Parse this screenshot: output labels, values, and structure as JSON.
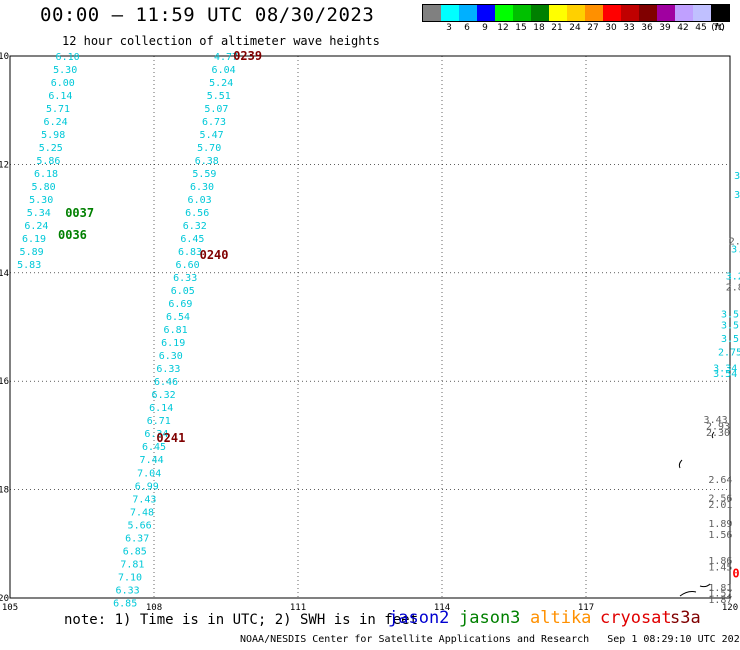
{
  "header": {
    "title": "00:00 — 11:59 UTC 08/30/2023",
    "subtitle": "12 hour collection of altimeter wave heights"
  },
  "legend": {
    "unit": "(ft)",
    "colors": [
      "#808080",
      "#00ffff",
      "#00b0ff",
      "#0000ff",
      "#00ff00",
      "#00c000",
      "#008000",
      "#ffff00",
      "#ffd000",
      "#ff9000",
      "#ff0000",
      "#c00000",
      "#800000",
      "#a000a0",
      "#c0a0ff",
      "#c0c0ff",
      "#000000"
    ],
    "labels": [
      "3",
      "6",
      "9",
      "12",
      "15",
      "18",
      "21",
      "24",
      "27",
      "30",
      "33",
      "36",
      "39",
      "42",
      "45",
      "70"
    ]
  },
  "axes": {
    "x_ticks": [
      "105",
      "108",
      "111",
      "114",
      "117",
      "120"
    ],
    "y_ticks": [
      "10",
      "12",
      "14",
      "16",
      "18",
      "20"
    ]
  },
  "colors": {
    "cyan": "#00c8d8",
    "green": "#008000",
    "darkred": "#800000",
    "gray": "#606060",
    "red": "#ff0000"
  },
  "tracks": {
    "track1": [
      {
        "lon": 106.2,
        "lat": 10.0,
        "v": "6.10"
      },
      {
        "lon": 106.15,
        "lat": 10.24,
        "v": "5.30"
      },
      {
        "lon": 106.1,
        "lat": 10.48,
        "v": "6.00"
      },
      {
        "lon": 106.05,
        "lat": 10.72,
        "v": "6.14"
      },
      {
        "lon": 106.0,
        "lat": 10.96,
        "v": "5.71"
      },
      {
        "lon": 105.95,
        "lat": 11.2,
        "v": "6.24"
      },
      {
        "lon": 105.9,
        "lat": 11.44,
        "v": "5.98"
      },
      {
        "lon": 105.85,
        "lat": 11.68,
        "v": "5.25"
      },
      {
        "lon": 105.8,
        "lat": 11.92,
        "v": "5.86"
      },
      {
        "lon": 105.75,
        "lat": 12.16,
        "v": "6.18"
      },
      {
        "lon": 105.7,
        "lat": 12.4,
        "v": "5.80"
      },
      {
        "lon": 105.65,
        "lat": 12.64,
        "v": "5.30"
      },
      {
        "lon": 105.6,
        "lat": 12.88,
        "v": "5.34"
      },
      {
        "lon": 105.55,
        "lat": 13.12,
        "v": "6.24"
      },
      {
        "lon": 105.5,
        "lat": 13.36,
        "v": "6.19"
      },
      {
        "lon": 105.45,
        "lat": 13.6,
        "v": "5.89"
      },
      {
        "lon": 105.4,
        "lat": 13.84,
        "v": "5.83"
      }
    ],
    "track2": [
      {
        "lon": 109.5,
        "lat": 10.0,
        "v": "4.77"
      },
      {
        "lon": 109.45,
        "lat": 10.24,
        "v": "6.04"
      },
      {
        "lon": 109.4,
        "lat": 10.48,
        "v": "5.24"
      },
      {
        "lon": 109.35,
        "lat": 10.72,
        "v": "5.51"
      },
      {
        "lon": 109.3,
        "lat": 10.96,
        "v": "5.07"
      },
      {
        "lon": 109.25,
        "lat": 11.2,
        "v": "6.73"
      },
      {
        "lon": 109.2,
        "lat": 11.44,
        "v": "5.47"
      },
      {
        "lon": 109.15,
        "lat": 11.68,
        "v": "5.70"
      },
      {
        "lon": 109.1,
        "lat": 11.92,
        "v": "6.38"
      },
      {
        "lon": 109.05,
        "lat": 12.16,
        "v": "5.59"
      },
      {
        "lon": 109.0,
        "lat": 12.4,
        "v": "6.30"
      },
      {
        "lon": 108.95,
        "lat": 12.64,
        "v": "6.03"
      },
      {
        "lon": 108.9,
        "lat": 12.88,
        "v": "6.56"
      },
      {
        "lon": 108.85,
        "lat": 13.12,
        "v": "6.32"
      },
      {
        "lon": 108.8,
        "lat": 13.36,
        "v": "6.45"
      },
      {
        "lon": 108.75,
        "lat": 13.6,
        "v": "6.83"
      },
      {
        "lon": 108.7,
        "lat": 13.84,
        "v": "6.60"
      },
      {
        "lon": 108.65,
        "lat": 14.08,
        "v": "6.33"
      },
      {
        "lon": 108.6,
        "lat": 14.32,
        "v": "6.05"
      },
      {
        "lon": 108.55,
        "lat": 14.56,
        "v": "6.69"
      },
      {
        "lon": 108.5,
        "lat": 14.8,
        "v": "6.54"
      },
      {
        "lon": 108.45,
        "lat": 15.04,
        "v": "6.81"
      },
      {
        "lon": 108.4,
        "lat": 15.28,
        "v": "6.19"
      },
      {
        "lon": 108.35,
        "lat": 15.52,
        "v": "6.30"
      },
      {
        "lon": 108.3,
        "lat": 15.76,
        "v": "6.33"
      },
      {
        "lon": 108.25,
        "lat": 16.0,
        "v": "6.46"
      },
      {
        "lon": 108.2,
        "lat": 16.24,
        "v": "6.32"
      },
      {
        "lon": 108.15,
        "lat": 16.48,
        "v": "6.14"
      },
      {
        "lon": 108.1,
        "lat": 16.72,
        "v": "6.71"
      },
      {
        "lon": 108.05,
        "lat": 16.96,
        "v": "6.34"
      },
      {
        "lon": 108.0,
        "lat": 17.2,
        "v": "6.45"
      },
      {
        "lon": 107.95,
        "lat": 17.44,
        "v": "7.44"
      },
      {
        "lon": 107.9,
        "lat": 17.68,
        "v": "7.04"
      },
      {
        "lon": 107.85,
        "lat": 17.92,
        "v": "6.99"
      },
      {
        "lon": 107.8,
        "lat": 18.16,
        "v": "7.43"
      },
      {
        "lon": 107.75,
        "lat": 18.4,
        "v": "7.48"
      },
      {
        "lon": 107.7,
        "lat": 18.64,
        "v": "5.66"
      },
      {
        "lon": 107.65,
        "lat": 18.88,
        "v": "6.37"
      },
      {
        "lon": 107.6,
        "lat": 19.12,
        "v": "6.85"
      },
      {
        "lon": 107.55,
        "lat": 19.36,
        "v": "7.81"
      },
      {
        "lon": 107.5,
        "lat": 19.6,
        "v": "7.10"
      },
      {
        "lon": 107.45,
        "lat": 19.84,
        "v": "6.33"
      },
      {
        "lon": 107.4,
        "lat": 20.08,
        "v": "6.85"
      }
    ],
    "right_cyan": [
      {
        "lon": 119.9,
        "lat": 15.75,
        "v": "3.34"
      },
      {
        "lon": 119.9,
        "lat": 15.85,
        "v": "3.54"
      }
    ],
    "right_gray": [
      {
        "lon": 119.7,
        "lat": 16.7,
        "v": "3.43"
      },
      {
        "lon": 119.75,
        "lat": 16.82,
        "v": "2.93"
      },
      {
        "lon": 119.75,
        "lat": 16.94,
        "v": "2.30"
      },
      {
        "lon": 119.8,
        "lat": 17.8,
        "v": "2.64"
      },
      {
        "lon": 119.8,
        "lat": 18.15,
        "v": "2.56"
      },
      {
        "lon": 119.8,
        "lat": 18.27,
        "v": "2.01"
      },
      {
        "lon": 119.8,
        "lat": 18.62,
        "v": "1.89"
      },
      {
        "lon": 119.8,
        "lat": 18.82,
        "v": "1.56"
      },
      {
        "lon": 119.8,
        "lat": 19.3,
        "v": "1.86"
      },
      {
        "lon": 119.8,
        "lat": 19.42,
        "v": "1.45"
      },
      {
        "lon": 119.8,
        "lat": 19.8,
        "v": "1.81"
      },
      {
        "lon": 119.8,
        "lat": 19.9,
        "v": "1.57"
      },
      {
        "lon": 119.8,
        "lat": 20.02,
        "v": "1.87"
      },
      {
        "lon": 120.1,
        "lat": 14.25,
        "v": "2.8"
      },
      {
        "lon": 120.1,
        "lat": 13.4,
        "v": "2."
      }
    ],
    "right_cyan_edge": [
      {
        "lon": 120.15,
        "lat": 12.2,
        "v": "3"
      },
      {
        "lon": 120.15,
        "lat": 12.55,
        "v": "3"
      },
      {
        "lon": 120.15,
        "lat": 13.55,
        "v": "3."
      },
      {
        "lon": 120.1,
        "lat": 14.05,
        "v": "3.2"
      },
      {
        "lon": 120.0,
        "lat": 14.75,
        "v": "3.5"
      },
      {
        "lon": 120.0,
        "lat": 14.95,
        "v": "3.5"
      },
      {
        "lon": 120.0,
        "lat": 15.2,
        "v": "3.5"
      },
      {
        "lon": 120.0,
        "lat": 15.45,
        "v": "2.75"
      }
    ]
  },
  "pass_labels": [
    {
      "lon": 109.65,
      "lat": 10.0,
      "v": "0239",
      "c": "darkred"
    },
    {
      "lon": 106.15,
      "lat": 12.9,
      "v": "0037",
      "c": "green"
    },
    {
      "lon": 106.0,
      "lat": 13.3,
      "v": "0036",
      "c": "green"
    },
    {
      "lon": 108.95,
      "lat": 13.67,
      "v": "0240",
      "c": "darkred"
    },
    {
      "lon": 108.05,
      "lat": 17.05,
      "v": "0241",
      "c": "darkred"
    },
    {
      "lon": 120.05,
      "lat": 19.55,
      "v": "0",
      "c": "red"
    }
  ],
  "footer": {
    "note": "note: 1) Time is in UTC; 2) SWH is in feet",
    "satellites": [
      {
        "name": "jason2",
        "color": "#0000d0"
      },
      {
        "name": "jason3",
        "color": "#008000"
      },
      {
        "name": "altika",
        "color": "#ff9000"
      },
      {
        "name": "cryosat",
        "color": "#e00000"
      },
      {
        "name": "s3a",
        "color": "#800000"
      }
    ],
    "credit": "NOAA/NESDIS Center for Satellite Applications and Research",
    "timestamp": "Sep  1 08:29:10 UTC 2023"
  }
}
